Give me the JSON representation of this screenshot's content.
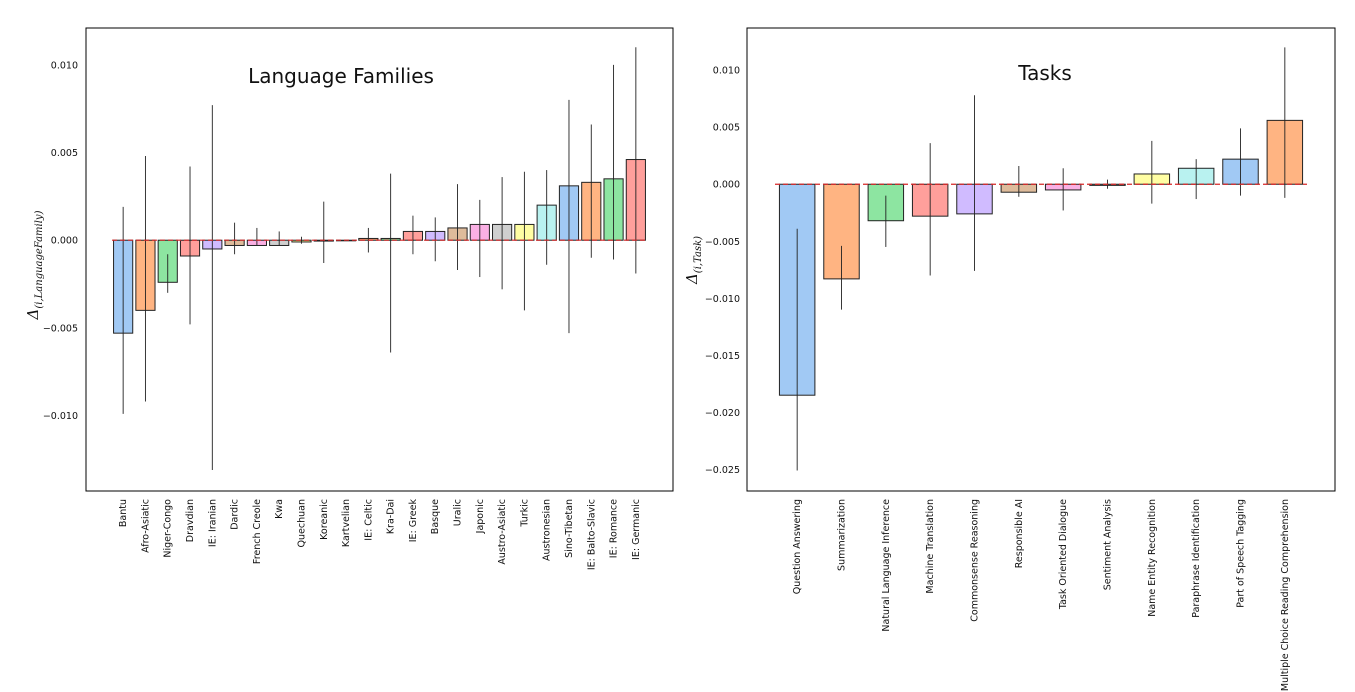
{
  "chart_data": [
    {
      "type": "bar",
      "title": "Language Families",
      "ylabel": "Δ",
      "ylabel_sub": "(i,LanguageFamily)",
      "xlabel": "",
      "ylim": [
        -0.0143,
        0.0121
      ],
      "yticks": [
        -0.01,
        -0.005,
        0.0,
        0.005,
        0.01
      ],
      "ytick_labels": [
        "−0.010",
        "−0.005",
        "0.000",
        "0.005",
        "0.010"
      ],
      "reference_line": 0.0,
      "grid": false,
      "categories": [
        "Bantu",
        "Afro-Asiatic",
        "Niger-Congo",
        "Dravdian",
        "IE: Iranian",
        "Dardic",
        "French Creole",
        "Kwa",
        "Quechuan",
        "Koreanic",
        "Kartvelian",
        "IE: Celtic",
        "Kra-Dai",
        "IE: Greek",
        "Basque",
        "Uralic",
        "Japonic",
        "Austro-Asiatic",
        "Turkic",
        "Austronesian",
        "Sino-Tibetan",
        "IE: Balto-Slavic",
        "IE: Romance",
        "IE: Germanic"
      ],
      "values": [
        -0.0053,
        -0.004,
        -0.0024,
        -0.0009,
        -0.0005,
        -0.0003,
        -0.0003,
        -0.0003,
        -0.0001,
        -5e-05,
        0.0,
        0.0001,
        0.0001,
        0.0005,
        0.0005,
        0.0007,
        0.0009,
        0.0009,
        0.0009,
        0.002,
        0.0031,
        0.0033,
        0.0035,
        0.0046
      ],
      "err_low": [
        -0.0099,
        -0.0092,
        -0.003,
        -0.0048,
        -0.0131,
        -0.0008,
        -0.0003,
        -0.0003,
        -0.0002,
        -0.0013,
        0.0,
        -0.0007,
        -0.0064,
        -0.0008,
        -0.0012,
        -0.0017,
        -0.0021,
        -0.0028,
        -0.004,
        -0.0014,
        -0.0053,
        -0.001,
        -0.0011,
        -0.0019
      ],
      "err_high": [
        0.0019,
        0.0048,
        -0.0008,
        0.0042,
        0.0077,
        0.001,
        0.0007,
        0.0005,
        0.0002,
        0.0022,
        0.0,
        0.0007,
        0.0038,
        0.0014,
        0.0013,
        0.0032,
        0.0023,
        0.0036,
        0.0039,
        0.004,
        0.008,
        0.0066,
        0.01,
        0.011
      ],
      "colors": [
        "#a1c9f4",
        "#ffb482",
        "#8de5a1",
        "#ff9f9b",
        "#d0bbff",
        "#debb9b",
        "#fab0e4",
        "#cfcfcf",
        "#fffea3",
        "#b9f2f0",
        "#a1c9f4",
        "#ffb482",
        "#8de5a1",
        "#ff9f9b",
        "#d0bbff",
        "#debb9b",
        "#fab0e4",
        "#cfcfcf",
        "#fffea3",
        "#b9f2f0",
        "#a1c9f4",
        "#ffb482",
        "#8de5a1",
        "#ff9f9b"
      ]
    },
    {
      "type": "bar",
      "title": "Tasks",
      "ylabel": "Δ",
      "ylabel_sub": "(i,Task)",
      "xlabel": "",
      "ylim": [
        -0.0269,
        0.0137
      ],
      "yticks": [
        -0.025,
        -0.02,
        -0.015,
        -0.01,
        -0.005,
        0.0,
        0.005,
        0.01
      ],
      "ytick_labels": [
        "−0.025",
        "−0.020",
        "−0.015",
        "−0.010",
        "−0.005",
        "0.000",
        "0.005",
        "0.010"
      ],
      "reference_line": 0.0,
      "grid": false,
      "categories": [
        "Question Answering",
        "Summarization",
        "Natural Language Inference",
        "Machine Translation",
        "Commonsense Reasoning",
        "Responsible AI",
        "Task Oriented Dialogue",
        "Sentiment Analysis",
        "Name Entity Recognition",
        "Paraphrase Identification",
        "Part of Speech Tagging",
        "Multiple Choice Reading Comprehension"
      ],
      "values": [
        -0.0185,
        -0.0083,
        -0.0032,
        -0.0028,
        -0.0026,
        -0.0007,
        -0.0005,
        -0.0001,
        0.0009,
        0.0014,
        0.0022,
        0.0056
      ],
      "err_low": [
        -0.0251,
        -0.011,
        -0.0055,
        -0.008,
        -0.0076,
        -0.0011,
        -0.0023,
        -0.0004,
        -0.0017,
        -0.0013,
        -0.001,
        -0.0012
      ],
      "err_high": [
        -0.0039,
        -0.0054,
        -0.001,
        0.0036,
        0.0078,
        0.0016,
        0.0014,
        0.0004,
        0.0038,
        0.0022,
        0.0049,
        0.012
      ],
      "colors": [
        "#a1c9f4",
        "#ffb482",
        "#8de5a1",
        "#ff9f9b",
        "#d0bbff",
        "#debb9b",
        "#fab0e4",
        "#cfcfcf",
        "#fffea3",
        "#b9f2f0",
        "#a1c9f4",
        "#ffb482"
      ]
    }
  ],
  "style": {
    "reference_line_color": "#d62728",
    "bar_edge_color": "#222222",
    "errorbar_color": "#222222"
  }
}
